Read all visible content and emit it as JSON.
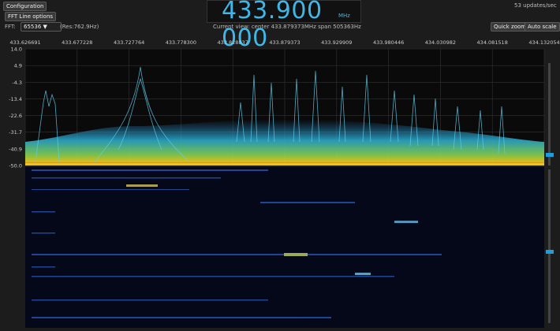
{
  "toolbar": {
    "configuration": "Configuration",
    "fft_line_options": "FFT Line options",
    "fft_label": "FFT:",
    "fft_size": "65536",
    "resolution": "(Res:762.9Hz)",
    "frequency": "433.900 000",
    "frequency_unit": "MHz",
    "view_info": "Current view: center 433.879373MHz span 505363Hz",
    "updates": "53 updates/sec",
    "quick_zoom": "Quick zoom",
    "auto_scale": "Auto scale"
  },
  "spectrum": {
    "freq_labels": [
      "433.626691",
      "433.677228",
      "433.727764",
      "433.778300",
      "433.828837",
      "433.879373",
      "433.929909",
      "433.980446",
      "434.030982",
      "434.081518",
      "434.132054"
    ],
    "db_labels": [
      "14.0",
      "4.9",
      "-4.3",
      "-13.4",
      "-22.6",
      "-31.7",
      "-40.9",
      "-50.0"
    ]
  }
}
